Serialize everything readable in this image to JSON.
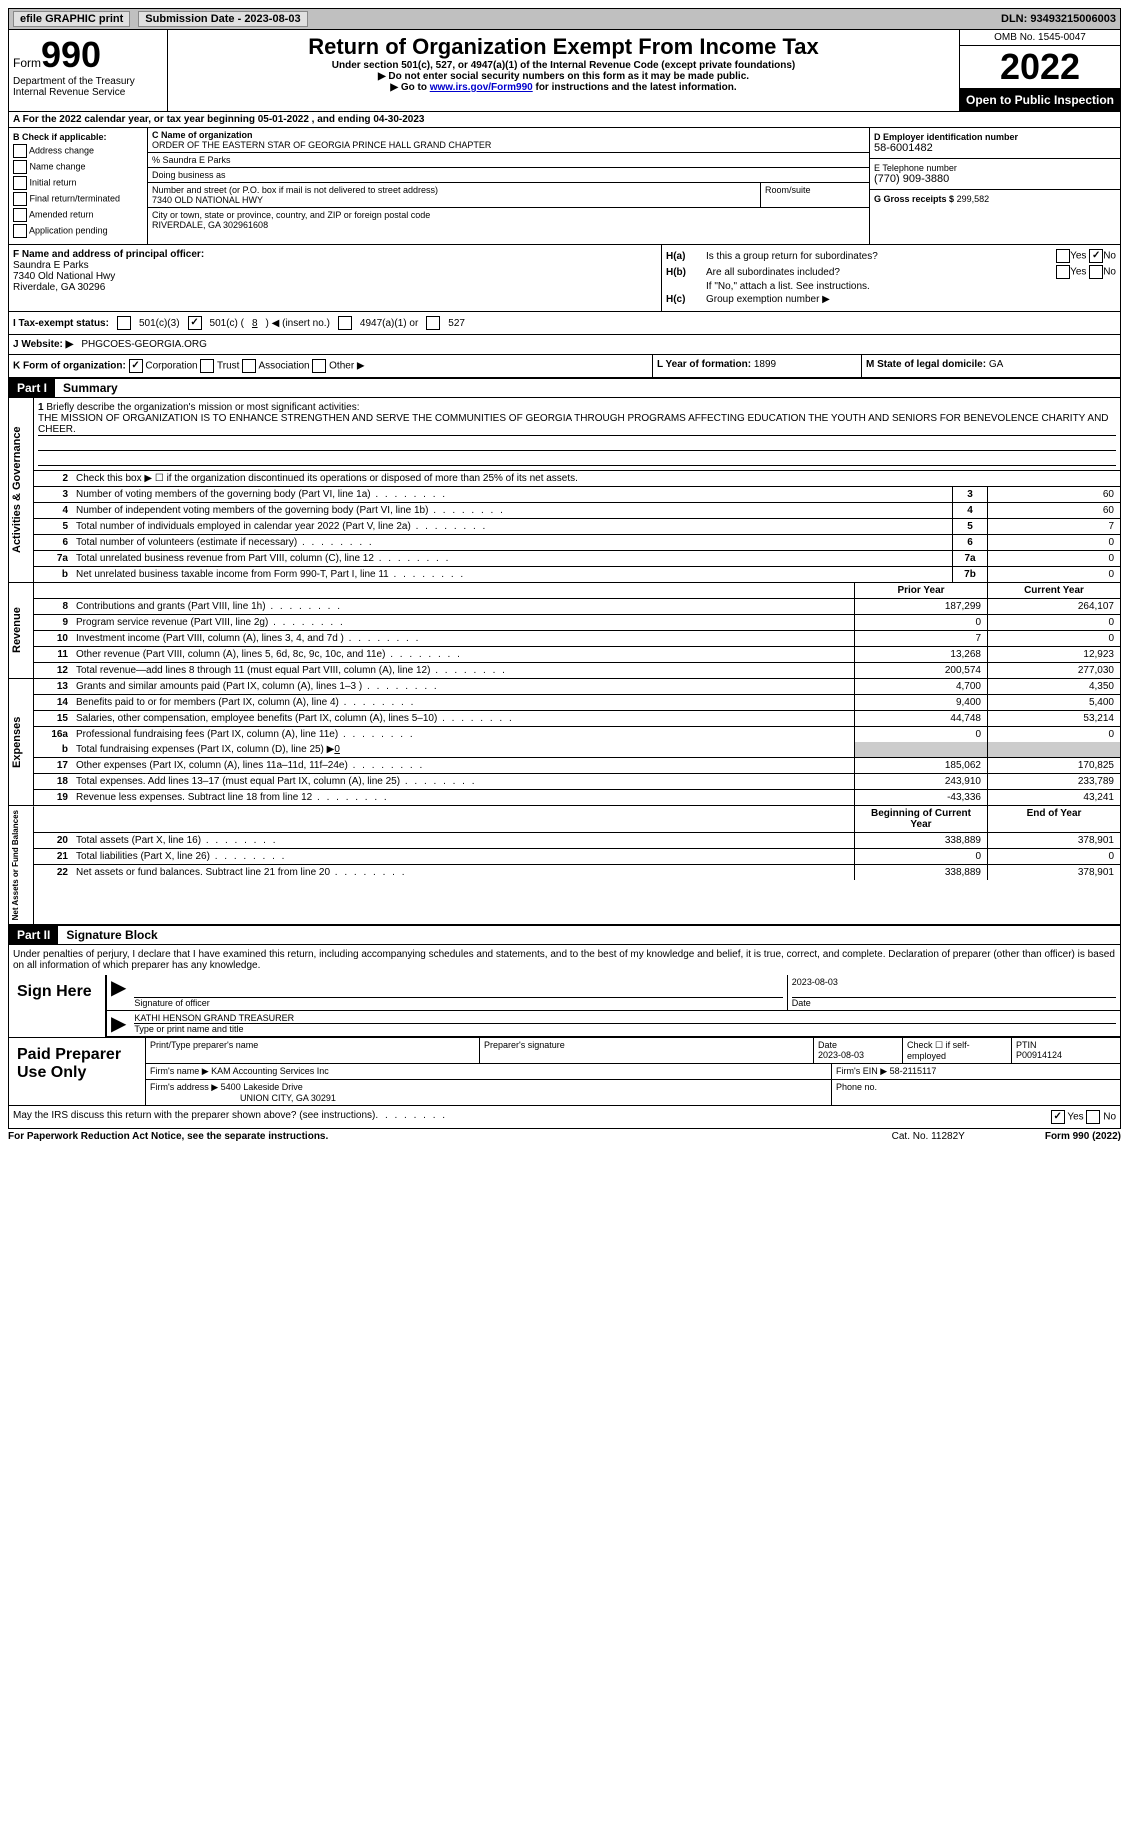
{
  "header": {
    "efile": "efile GRAPHIC print",
    "submission": "Submission Date - 2023-08-03",
    "dln": "DLN: 93493215006003"
  },
  "top": {
    "form_prefix": "Form",
    "form_num": "990",
    "dept": "Department of the Treasury Internal Revenue Service",
    "title": "Return of Organization Exempt From Income Tax",
    "sub1": "Under section 501(c), 527, or 4947(a)(1) of the Internal Revenue Code (except private foundations)",
    "sub2": "▶ Do not enter social security numbers on this form as it may be made public.",
    "sub3_a": "▶ Go to ",
    "sub3_link": "www.irs.gov/Form990",
    "sub3_b": " for instructions and the latest information.",
    "omb": "OMB No. 1545-0047",
    "year": "2022",
    "inspect": "Open to Public Inspection"
  },
  "rowA": "A For the 2022 calendar year, or tax year beginning 05-01-2022    , and ending 04-30-2023",
  "B": {
    "label": "B Check if applicable:",
    "items": [
      "Address change",
      "Name change",
      "Initial return",
      "Final return/terminated",
      "Amended return",
      "Application pending"
    ]
  },
  "C": {
    "name_label": "C Name of organization",
    "name": "ORDER OF THE EASTERN STAR OF GEORGIA PRINCE HALL GRAND CHAPTER",
    "pct_label": "% Saundra E Parks",
    "dba_label": "Doing business as",
    "street_label": "Number and street (or P.O. box if mail is not delivered to street address)",
    "street": "7340 OLD NATIONAL HWY",
    "room_label": "Room/suite",
    "city_label": "City or town, state or province, country, and ZIP or foreign postal code",
    "city": "RIVERDALE, GA  302961608"
  },
  "D": {
    "ein_label": "D Employer identification number",
    "ein": "58-6001482",
    "tel_label": "E Telephone number",
    "tel": "(770) 909-3880",
    "gross_label": "G Gross receipts $",
    "gross": "299,582"
  },
  "F": {
    "label": "F  Name and address of principal officer:",
    "name": "Saundra E Parks",
    "street": "7340 Old National Hwy",
    "city": "Riverdale, GA  30296"
  },
  "H": {
    "a_label": "H(a)",
    "a_text": "Is this a group return for subordinates?",
    "b_label": "H(b)",
    "b_text": "Are all subordinates included?",
    "b_note": "If \"No,\" attach a list. See instructions.",
    "c_label": "H(c)",
    "c_text": "Group exemption number ▶"
  },
  "I": {
    "label": "I    Tax-exempt status:",
    "c3": "501(c)(3)",
    "c_a": "501(c) (",
    "c_num": "8",
    "c_b": ") ◀ (insert no.)",
    "a4947": "4947(a)(1) or",
    "s527": "527"
  },
  "J": {
    "label": "J    Website: ▶",
    "val": "PHGCOES-GEORGIA.ORG"
  },
  "K": {
    "label": "K Form of organization:",
    "corp": "Corporation",
    "trust": "Trust",
    "assoc": "Association",
    "other": "Other ▶"
  },
  "L": {
    "label": "L Year of formation:",
    "val": "1899"
  },
  "M": {
    "label": "M State of legal domicile:",
    "val": "GA"
  },
  "part1": {
    "label": "Part I",
    "title": "Summary"
  },
  "mission": {
    "label": "Briefly describe the organization's mission or most significant activities:",
    "text": "THE MISSION OF ORGANIZATION IS TO ENHANCE STRENGTHEN AND SERVE THE COMMUNITIES OF GEORGIA THROUGH PROGRAMS AFFECTING EDUCATION THE YOUTH AND SENIORS FOR BENEVOLENCE CHARITY AND CHEER."
  },
  "line2": "Check this box ▶ ☐  if the organization discontinued its operations or disposed of more than 25% of its net assets.",
  "lines_ag": [
    {
      "n": "3",
      "d": "Number of voting members of the governing body (Part VI, line 1a)",
      "b": "3",
      "v": "60"
    },
    {
      "n": "4",
      "d": "Number of independent voting members of the governing body (Part VI, line 1b)",
      "b": "4",
      "v": "60"
    },
    {
      "n": "5",
      "d": "Total number of individuals employed in calendar year 2022 (Part V, line 2a)",
      "b": "5",
      "v": "7"
    },
    {
      "n": "6",
      "d": "Total number of volunteers (estimate if necessary)",
      "b": "6",
      "v": "0"
    },
    {
      "n": "7a",
      "d": "Total unrelated business revenue from Part VIII, column (C), line 12",
      "b": "7a",
      "v": "0"
    },
    {
      "n": "b",
      "d": "Net unrelated business taxable income from Form 990-T, Part I, line 11",
      "b": "7b",
      "v": "0"
    }
  ],
  "col_hdr": {
    "prior": "Prior Year",
    "current": "Current Year"
  },
  "revenue": [
    {
      "n": "8",
      "d": "Contributions and grants (Part VIII, line 1h)",
      "p": "187,299",
      "c": "264,107"
    },
    {
      "n": "9",
      "d": "Program service revenue (Part VIII, line 2g)",
      "p": "0",
      "c": "0"
    },
    {
      "n": "10",
      "d": "Investment income (Part VIII, column (A), lines 3, 4, and 7d )",
      "p": "7",
      "c": "0"
    },
    {
      "n": "11",
      "d": "Other revenue (Part VIII, column (A), lines 5, 6d, 8c, 9c, 10c, and 11e)",
      "p": "13,268",
      "c": "12,923"
    },
    {
      "n": "12",
      "d": "Total revenue—add lines 8 through 11 (must equal Part VIII, column (A), line 12)",
      "p": "200,574",
      "c": "277,030"
    }
  ],
  "expenses": [
    {
      "n": "13",
      "d": "Grants and similar amounts paid (Part IX, column (A), lines 1–3 )",
      "p": "4,700",
      "c": "4,350"
    },
    {
      "n": "14",
      "d": "Benefits paid to or for members (Part IX, column (A), line 4)",
      "p": "9,400",
      "c": "5,400"
    },
    {
      "n": "15",
      "d": "Salaries, other compensation, employee benefits (Part IX, column (A), lines 5–10)",
      "p": "44,748",
      "c": "53,214"
    },
    {
      "n": "16a",
      "d": "Professional fundraising fees (Part IX, column (A), line 11e)",
      "p": "0",
      "c": "0"
    }
  ],
  "line16b": {
    "n": "b",
    "d": "Total fundraising expenses (Part IX, column (D), line 25) ▶",
    "v": "0"
  },
  "expenses2": [
    {
      "n": "17",
      "d": "Other expenses (Part IX, column (A), lines 11a–11d, 11f–24e)",
      "p": "185,062",
      "c": "170,825"
    },
    {
      "n": "18",
      "d": "Total expenses. Add lines 13–17 (must equal Part IX, column (A), line 25)",
      "p": "243,910",
      "c": "233,789"
    },
    {
      "n": "19",
      "d": "Revenue less expenses. Subtract line 18 from line 12",
      "p": "-43,336",
      "c": "43,241"
    }
  ],
  "nahdrs": {
    "beg": "Beginning of Current Year",
    "end": "End of Year"
  },
  "netassets": [
    {
      "n": "20",
      "d": "Total assets (Part X, line 16)",
      "p": "338,889",
      "c": "378,901"
    },
    {
      "n": "21",
      "d": "Total liabilities (Part X, line 26)",
      "p": "0",
      "c": "0"
    },
    {
      "n": "22",
      "d": "Net assets or fund balances. Subtract line 21 from line 20",
      "p": "338,889",
      "c": "378,901"
    }
  ],
  "side": {
    "ag": "Activities & Governance",
    "rev": "Revenue",
    "exp": "Expenses",
    "na": "Net Assets or Fund Balances"
  },
  "part2": {
    "label": "Part II",
    "title": "Signature Block"
  },
  "sig": {
    "decl": "Under penalties of perjury, I declare that I have examined this return, including accompanying schedules and statements, and to the best of my knowledge and belief, it is true, correct, and complete. Declaration of preparer (other than officer) is based on all information of which preparer has any knowledge.",
    "sign_here": "Sign Here",
    "officer_sig": "Signature of officer",
    "date": "Date",
    "date_val": "2023-08-03",
    "name": "KATHI HENSON  GRAND TREASURER",
    "name_label": "Type or print name and title"
  },
  "prep": {
    "label": "Paid Preparer Use Only",
    "h_name": "Print/Type preparer's name",
    "h_sig": "Preparer's signature",
    "h_date": "Date",
    "date_val": "2023-08-03",
    "h_check": "Check ☐ if self-employed",
    "h_ptin": "PTIN",
    "ptin": "P00914124",
    "firm_name_l": "Firm's name    ▶",
    "firm_name": "KAM Accounting Services Inc",
    "firm_ein_l": "Firm's EIN ▶",
    "firm_ein": "58-2115117",
    "firm_addr_l": "Firm's address ▶",
    "firm_addr": "5400 Lakeside Drive",
    "firm_city": "UNION CITY, GA  30291",
    "phone_l": "Phone no."
  },
  "discuss": "May the IRS discuss this return with the preparer shown above? (see instructions)",
  "footer": {
    "pra": "For Paperwork Reduction Act Notice, see the separate instructions.",
    "cat": "Cat. No. 11282Y",
    "form": "Form 990 (2022)"
  }
}
